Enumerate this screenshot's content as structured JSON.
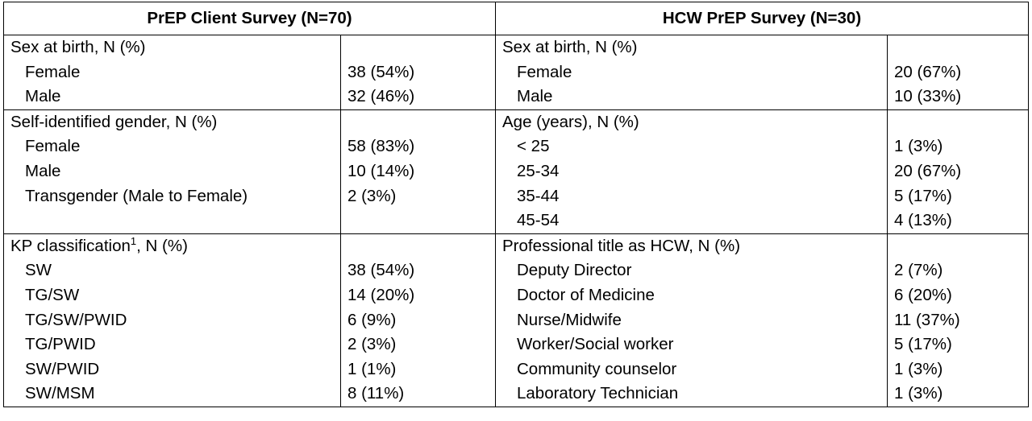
{
  "headers": {
    "left": "PrEP Client Survey (N=70)",
    "right": "HCW PrEP Survey (N=30)"
  },
  "rows": [
    {
      "grp": true,
      "l_lbl": "Sex at birth, N (%)",
      "l_head": true,
      "l_val": "",
      "r_lbl": "Sex at birth, N (%)",
      "r_head": true,
      "r_val": ""
    },
    {
      "grp": false,
      "l_lbl": "Female",
      "l_val": "38 (54%)",
      "r_lbl": "Female",
      "r_val": "20 (67%)"
    },
    {
      "grp": false,
      "l_lbl": "Male",
      "l_val": "32 (46%)",
      "r_lbl": "Male",
      "r_val": "10 (33%)"
    },
    {
      "grp": true,
      "l_lbl": "Self-identified gender, N (%)",
      "l_head": true,
      "l_val": "",
      "r_lbl": "Age (years), N (%)",
      "r_head": true,
      "r_val": ""
    },
    {
      "grp": false,
      "l_lbl": "Female",
      "l_val": "58 (83%)",
      "r_lbl": "< 25",
      "r_val": "1 (3%)"
    },
    {
      "grp": false,
      "l_lbl": "Male",
      "l_val": "10 (14%)",
      "r_lbl": "25-34",
      "r_val": "20 (67%)"
    },
    {
      "grp": false,
      "l_lbl": "Transgender (Male to Female)",
      "l_val": "2 (3%)",
      "r_lbl": "35-44",
      "r_val": "5 (17%)"
    },
    {
      "grp": false,
      "l_lbl": "",
      "l_val": "",
      "r_lbl": "45-54",
      "r_val": "4 (13%)"
    },
    {
      "grp": true,
      "l_lbl": "KP classification",
      "l_sup": "1",
      "l_suffix": ", N (%)",
      "l_head": true,
      "l_val": "",
      "r_lbl": "Professional title as HCW, N (%)",
      "r_head": true,
      "r_val": ""
    },
    {
      "grp": false,
      "l_lbl": "SW",
      "l_val": "38 (54%)",
      "r_lbl": "Deputy Director",
      "r_val": "2 (7%)"
    },
    {
      "grp": false,
      "l_lbl": "TG/SW",
      "l_val": "14 (20%)",
      "r_lbl": "Doctor of Medicine",
      "r_val": "6 (20%)"
    },
    {
      "grp": false,
      "l_lbl": "TG/SW/PWID",
      "l_val": "6 (9%)",
      "r_lbl": "Nurse/Midwife",
      "r_val": "11 (37%)"
    },
    {
      "grp": false,
      "l_lbl": "TG/PWID",
      "l_val": "2 (3%)",
      "r_lbl": "Worker/Social worker",
      "r_val": "5 (17%)"
    },
    {
      "grp": false,
      "l_lbl": "SW/PWID",
      "l_val": "1 (1%)",
      "r_lbl": "Community counselor",
      "r_val": "1 (3%)"
    },
    {
      "grp": false,
      "l_lbl": "SW/MSM",
      "l_val": "8 (11%)",
      "r_lbl": "Laboratory Technician",
      "r_val": "1 (3%)"
    }
  ]
}
